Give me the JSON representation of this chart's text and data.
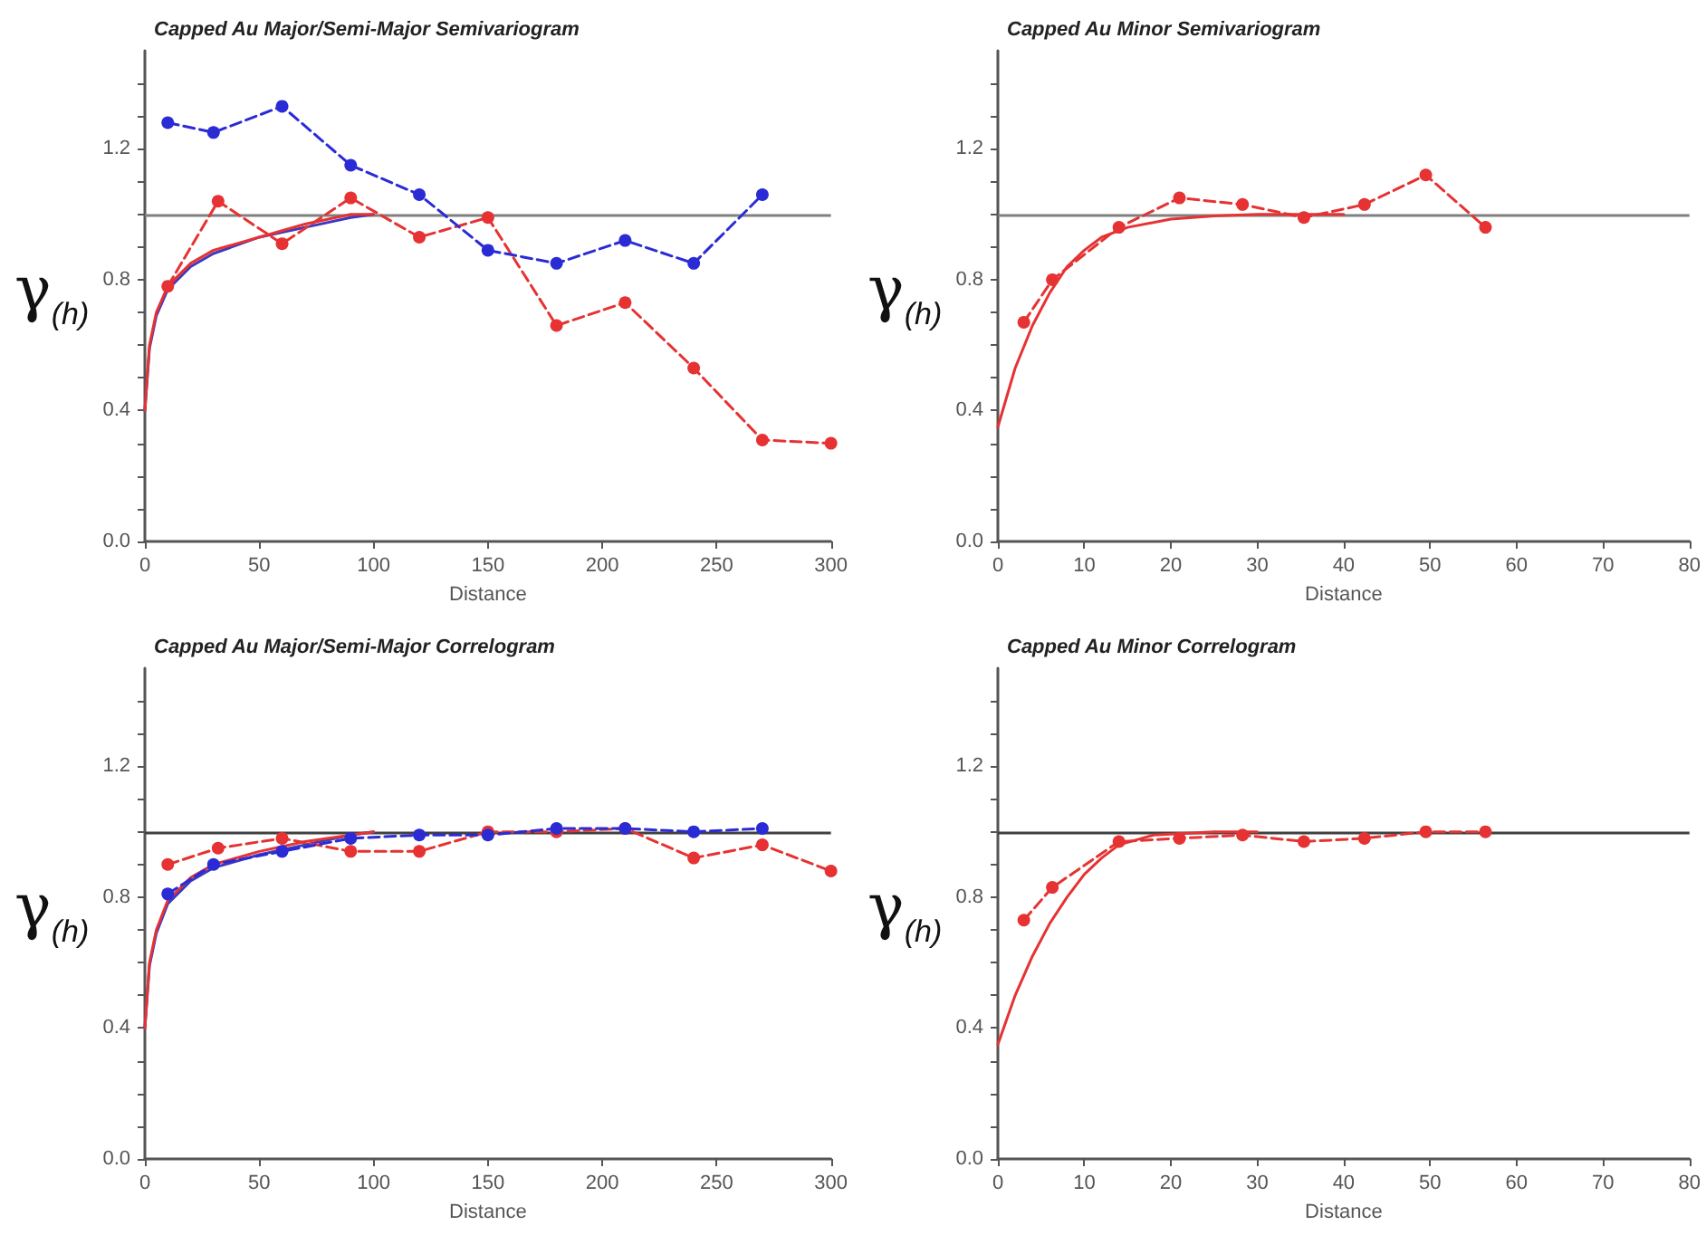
{
  "chart_data": [
    {
      "type": "line",
      "title": "Capped Au Major/Semi-Major Semivariogram",
      "xlabel": "Distance",
      "ylabel": "γ$_{(h)}$",
      "xlim": [
        0,
        300
      ],
      "xticks": [
        0,
        50,
        100,
        150,
        200,
        250,
        300
      ],
      "ylim": [
        0,
        1.5
      ],
      "yticks": [
        {
          "value": 0,
          "label": "0.0"
        },
        {
          "value": 0.1,
          "label": null
        },
        {
          "value": 0.2,
          "label": null
        },
        {
          "value": 0.3,
          "label": null
        },
        {
          "value": 0.4,
          "label": "0.4"
        },
        {
          "value": 0.5,
          "label": null
        },
        {
          "value": 0.6,
          "label": null
        },
        {
          "value": 0.7,
          "label": null
        },
        {
          "value": 0.8,
          "label": "0.8"
        },
        {
          "value": 0.9,
          "label": null
        },
        {
          "value": 1.0,
          "label": null
        },
        {
          "value": 1.1,
          "label": null
        },
        {
          "value": 1.2,
          "label": "1.2"
        },
        {
          "value": 1.3,
          "label": null
        },
        {
          "value": 1.4,
          "label": null
        }
      ],
      "grid": false,
      "ref_lines": [
        {
          "axis": "y",
          "value": 1.0,
          "color": "#808080",
          "line_style": "solid"
        }
      ],
      "series": [
        {
          "color": "#2b2bd6",
          "line_style": "dashed",
          "marker": "circle",
          "x": [
            10,
            30,
            60,
            90,
            120,
            150,
            180,
            210,
            240,
            270
          ],
          "values": [
            1.28,
            1.25,
            1.33,
            1.15,
            1.06,
            0.89,
            0.85,
            0.92,
            0.85,
            1.06
          ]
        },
        {
          "color": "#e63232",
          "line_style": "dashed",
          "marker": "circle",
          "x": [
            10,
            32,
            60,
            90,
            120,
            150,
            180,
            210,
            240,
            270,
            300
          ],
          "values": [
            0.78,
            1.04,
            0.91,
            1.05,
            0.93,
            0.99,
            0.66,
            0.73,
            0.53,
            0.31,
            0.3
          ]
        },
        {
          "color": "#e63232",
          "line_style": "solid",
          "marker": "none",
          "x": [
            0,
            2,
            5,
            10,
            20,
            30,
            50,
            70,
            90,
            100
          ],
          "values": [
            0.4,
            0.6,
            0.7,
            0.78,
            0.85,
            0.89,
            0.93,
            0.97,
            1.0,
            1.0
          ]
        },
        {
          "color": "#3a3ac0",
          "line_style": "solid",
          "marker": "none",
          "x": [
            0,
            2,
            5,
            10,
            20,
            30,
            50,
            70,
            90,
            100
          ],
          "values": [
            0.4,
            0.59,
            0.69,
            0.77,
            0.84,
            0.88,
            0.93,
            0.96,
            0.99,
            1.0
          ]
        }
      ]
    },
    {
      "type": "line",
      "title": "Capped Au Minor Semivariogram",
      "xlabel": "Distance",
      "ylabel": "γ$_{(h)}$",
      "xlim": [
        0,
        80
      ],
      "xticks": [
        0,
        10,
        20,
        30,
        40,
        50,
        60,
        70,
        80
      ],
      "ylim": [
        0,
        1.5
      ],
      "yticks": [
        {
          "value": 0,
          "label": "0.0"
        },
        {
          "value": 0.1,
          "label": null
        },
        {
          "value": 0.2,
          "label": null
        },
        {
          "value": 0.3,
          "label": null
        },
        {
          "value": 0.4,
          "label": "0.4"
        },
        {
          "value": 0.5,
          "label": null
        },
        {
          "value": 0.6,
          "label": null
        },
        {
          "value": 0.7,
          "label": null
        },
        {
          "value": 0.8,
          "label": "0.8"
        },
        {
          "value": 0.9,
          "label": null
        },
        {
          "value": 1.0,
          "label": null
        },
        {
          "value": 1.1,
          "label": null
        },
        {
          "value": 1.2,
          "label": "1.2"
        },
        {
          "value": 1.3,
          "label": null
        },
        {
          "value": 1.4,
          "label": null
        }
      ],
      "grid": false,
      "ref_lines": [
        {
          "axis": "y",
          "value": 1.0,
          "color": "#808080",
          "line_style": "solid"
        }
      ],
      "series": [
        {
          "color": "#e63232",
          "line_style": "dashed",
          "marker": "circle",
          "x": [
            3,
            6.3,
            14,
            21,
            28.3,
            35.4,
            42.4,
            49.5,
            56.4
          ],
          "values": [
            0.67,
            0.8,
            0.96,
            1.05,
            1.03,
            0.99,
            1.03,
            1.12,
            0.96
          ]
        },
        {
          "color": "#e63232",
          "line_style": "solid",
          "marker": "none",
          "x": [
            0,
            2,
            4,
            6,
            8,
            10,
            12,
            15,
            20,
            25,
            30,
            40
          ],
          "values": [
            0.35,
            0.53,
            0.66,
            0.76,
            0.84,
            0.89,
            0.93,
            0.96,
            0.985,
            0.995,
            1.0,
            1.0
          ]
        }
      ]
    },
    {
      "type": "line",
      "title": "Capped Au Major/Semi-Major Correlogram",
      "xlabel": "Distance",
      "ylabel": "γ$_{(h)}$",
      "xlim": [
        0,
        300
      ],
      "xticks": [
        0,
        50,
        100,
        150,
        200,
        250,
        300
      ],
      "ylim": [
        0,
        1.5
      ],
      "yticks": [
        {
          "value": 0,
          "label": "0.0"
        },
        {
          "value": 0.1,
          "label": null
        },
        {
          "value": 0.2,
          "label": null
        },
        {
          "value": 0.3,
          "label": null
        },
        {
          "value": 0.4,
          "label": "0.4"
        },
        {
          "value": 0.5,
          "label": null
        },
        {
          "value": 0.6,
          "label": null
        },
        {
          "value": 0.7,
          "label": null
        },
        {
          "value": 0.8,
          "label": "0.8"
        },
        {
          "value": 0.9,
          "label": null
        },
        {
          "value": 1.0,
          "label": null
        },
        {
          "value": 1.1,
          "label": null
        },
        {
          "value": 1.2,
          "label": "1.2"
        },
        {
          "value": 1.3,
          "label": null
        },
        {
          "value": 1.4,
          "label": null
        }
      ],
      "grid": false,
      "ref_lines": [
        {
          "axis": "y",
          "value": 1.0,
          "color": "#404040",
          "line_style": "solid"
        }
      ],
      "series": [
        {
          "color": "#2b2bd6",
          "line_style": "dashed",
          "marker": "circle",
          "x": [
            10,
            30,
            60,
            90,
            120,
            150,
            180,
            210,
            240,
            270
          ],
          "values": [
            0.81,
            0.9,
            0.94,
            0.98,
            0.99,
            0.99,
            1.01,
            1.01,
            1.0,
            1.01
          ]
        },
        {
          "color": "#e63232",
          "line_style": "dashed",
          "marker": "circle",
          "x": [
            10,
            32,
            60,
            90,
            120,
            150,
            180,
            210,
            240,
            270,
            300
          ],
          "values": [
            0.9,
            0.95,
            0.98,
            0.94,
            0.94,
            1.0,
            1.0,
            1.01,
            0.92,
            0.96,
            0.88
          ]
        },
        {
          "color": "#e63232",
          "line_style": "solid",
          "marker": "none",
          "x": [
            0,
            2,
            5,
            10,
            20,
            30,
            50,
            70,
            90,
            100
          ],
          "values": [
            0.4,
            0.6,
            0.7,
            0.79,
            0.86,
            0.9,
            0.94,
            0.97,
            0.99,
            1.0
          ]
        },
        {
          "color": "#3a3ac0",
          "line_style": "solid",
          "marker": "none",
          "x": [
            0,
            2,
            5,
            10,
            20,
            30,
            50,
            70,
            90,
            100
          ],
          "values": [
            0.4,
            0.59,
            0.69,
            0.78,
            0.85,
            0.89,
            0.93,
            0.96,
            0.99,
            1.0
          ]
        }
      ]
    },
    {
      "type": "line",
      "title": "Capped Au Minor Correlogram",
      "xlabel": "Distance",
      "ylabel": "γ$_{(h)}$",
      "xlim": [
        0,
        80
      ],
      "xticks": [
        0,
        10,
        20,
        30,
        40,
        50,
        60,
        70,
        80
      ],
      "ylim": [
        0,
        1.5
      ],
      "yticks": [
        {
          "value": 0,
          "label": "0.0"
        },
        {
          "value": 0.1,
          "label": null
        },
        {
          "value": 0.2,
          "label": null
        },
        {
          "value": 0.3,
          "label": null
        },
        {
          "value": 0.4,
          "label": "0.4"
        },
        {
          "value": 0.5,
          "label": null
        },
        {
          "value": 0.6,
          "label": null
        },
        {
          "value": 0.7,
          "label": null
        },
        {
          "value": 0.8,
          "label": "0.8"
        },
        {
          "value": 0.9,
          "label": null
        },
        {
          "value": 1.0,
          "label": null
        },
        {
          "value": 1.1,
          "label": null
        },
        {
          "value": 1.2,
          "label": "1.2"
        },
        {
          "value": 1.3,
          "label": null
        },
        {
          "value": 1.4,
          "label": null
        }
      ],
      "grid": false,
      "ref_lines": [
        {
          "axis": "y",
          "value": 1.0,
          "color": "#404040",
          "line_style": "solid"
        }
      ],
      "series": [
        {
          "color": "#e63232",
          "line_style": "dashed",
          "marker": "circle",
          "x": [
            3,
            6.3,
            14,
            21,
            28.3,
            35.4,
            42.4,
            49.5,
            56.4
          ],
          "values": [
            0.73,
            0.83,
            0.97,
            0.98,
            0.99,
            0.97,
            0.98,
            1.0,
            1.0
          ]
        },
        {
          "color": "#e63232",
          "line_style": "solid",
          "marker": "none",
          "x": [
            0,
            2,
            4,
            6,
            8,
            10,
            12,
            14,
            18,
            25,
            30
          ],
          "values": [
            0.35,
            0.5,
            0.62,
            0.72,
            0.8,
            0.87,
            0.92,
            0.96,
            0.99,
            1.0,
            1.0
          ]
        }
      ]
    }
  ]
}
